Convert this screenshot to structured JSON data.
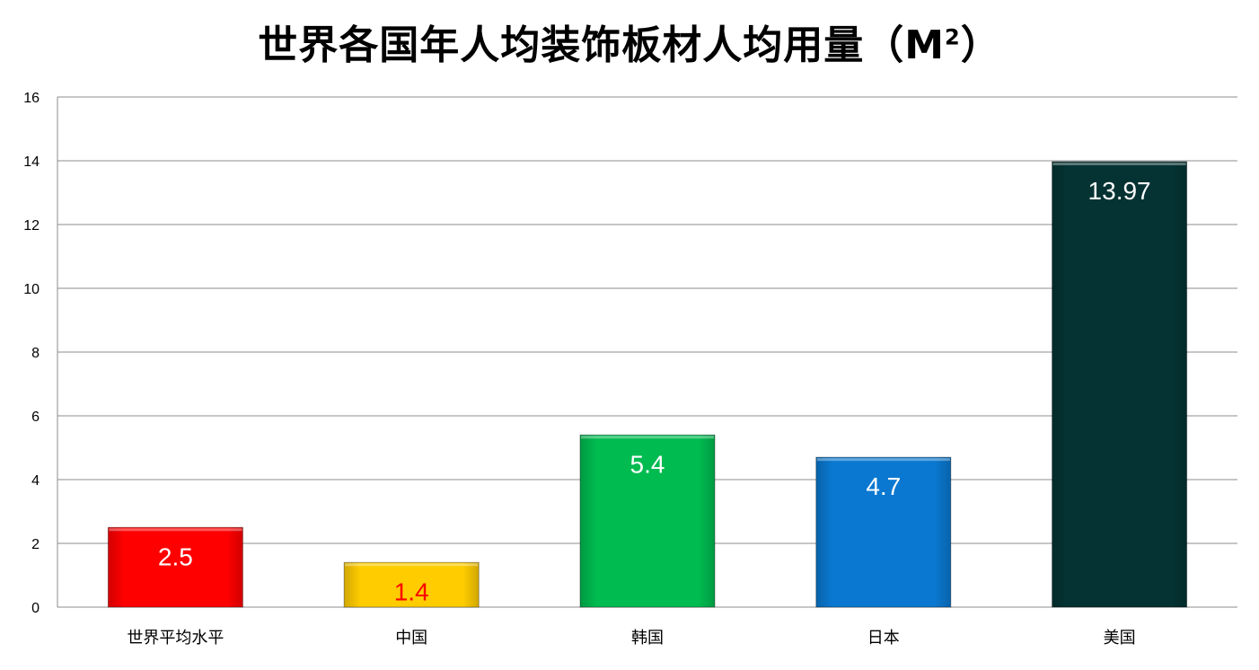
{
  "chart_data": {
    "type": "bar",
    "title_main": "世界各国年人均装饰板材人均用量（M",
    "title_sup": "2",
    "title_end": "）",
    "categories": [
      "世界平均水平",
      "中国",
      "韩国",
      "日本",
      "美国"
    ],
    "values": [
      2.5,
      1.4,
      5.4,
      4.7,
      13.97
    ],
    "data_labels": [
      "2.5",
      "1.4",
      "5.4",
      "4.7",
      "13.97"
    ],
    "bar_colors": [
      "#ff0000",
      "#ffcc00",
      "#00bb50",
      "#0a78d0",
      "#053333"
    ],
    "label_colors": [
      "#ffffff",
      "#ff0000",
      "#ffffff",
      "#ffffff",
      "#ffffff"
    ],
    "ylim": [
      0,
      16
    ],
    "yticks": [
      0,
      2,
      4,
      6,
      8,
      10,
      12,
      14,
      16
    ],
    "grid": true,
    "legend": "none"
  }
}
